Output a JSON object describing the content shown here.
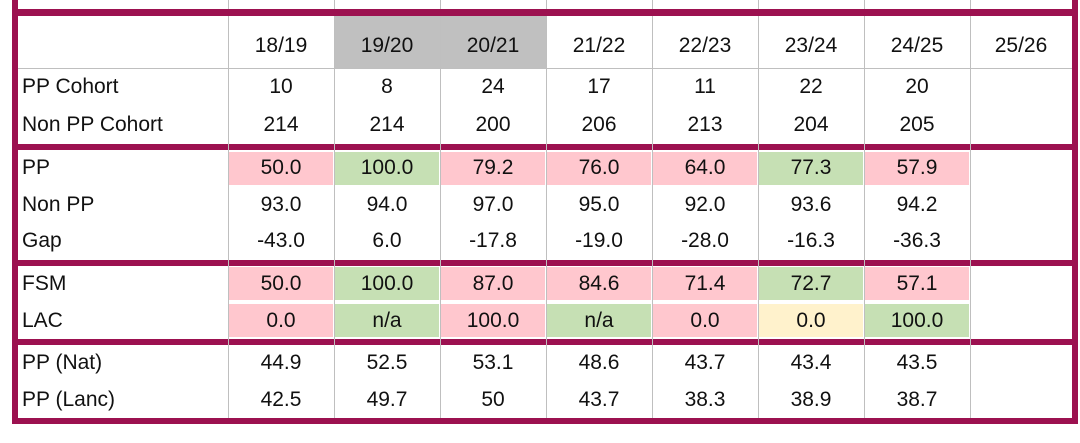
{
  "table": {
    "columns": [
      "18/19",
      "19/20",
      "20/21",
      "21/22",
      "22/23",
      "23/24",
      "24/25",
      "25/26"
    ],
    "column_fills": [
      null,
      "#c0c0c0",
      "#c0c0c0",
      null,
      null,
      null,
      null,
      null
    ],
    "groups": [
      {
        "rows": [
          {
            "label": "PP Cohort",
            "values": [
              "10",
              "8",
              "24",
              "17",
              "11",
              "22",
              "20"
            ]
          },
          {
            "label": "Non PP Cohort",
            "values": [
              "214",
              "214",
              "200",
              "206",
              "213",
              "204",
              "205"
            ]
          }
        ]
      },
      {
        "rows": [
          {
            "label": "PP",
            "values": [
              "50.0",
              "100.0",
              "79.2",
              "76.0",
              "64.0",
              "77.3",
              "57.9"
            ],
            "fills": [
              "#ffc7ce",
              "#c6e0b4",
              "#ffc7ce",
              "#ffc7ce",
              "#ffc7ce",
              "#c6e0b4",
              "#ffc7ce"
            ]
          },
          {
            "label": "Non PP",
            "values": [
              "93.0",
              "94.0",
              "97.0",
              "95.0",
              "92.0",
              "93.6",
              "94.2"
            ]
          },
          {
            "label": "Gap",
            "values": [
              "-43.0",
              "6.0",
              "-17.8",
              "-19.0",
              "-28.0",
              "-16.3",
              "-36.3"
            ]
          }
        ]
      },
      {
        "rows": [
          {
            "label": "FSM",
            "values": [
              "50.0",
              "100.0",
              "87.0",
              "84.6",
              "71.4",
              "72.7",
              "57.1"
            ],
            "fills": [
              "#ffc7ce",
              "#c6e0b4",
              "#ffc7ce",
              "#ffc7ce",
              "#ffc7ce",
              "#c6e0b4",
              "#ffc7ce"
            ]
          },
          {
            "label": "LAC",
            "values": [
              "0.0",
              "n/a",
              "100.0",
              "n/a",
              "0.0",
              "0.0",
              "100.0"
            ],
            "fills": [
              "#ffc7ce",
              "#c6e0b4",
              "#ffc7ce",
              "#c6e0b4",
              "#ffc7ce",
              "#fff2cc",
              "#c6e0b4"
            ]
          }
        ]
      },
      {
        "rows": [
          {
            "label": "PP (Nat)",
            "values": [
              "44.9",
              "52.5",
              "53.1",
              "48.6",
              "43.7",
              "43.4",
              "43.5"
            ]
          },
          {
            "label": "PP (Lanc)",
            "values": [
              "42.5",
              "49.7",
              "50",
              "43.7",
              "38.3",
              "38.9",
              "38.7"
            ]
          }
        ]
      }
    ]
  }
}
